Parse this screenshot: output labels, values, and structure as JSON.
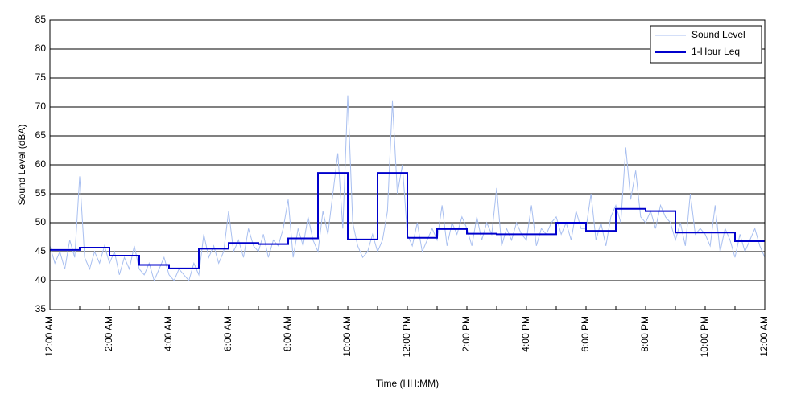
{
  "chart_data": {
    "type": "line",
    "xlabel": "Time (HH:MM)",
    "ylabel": "Sound Level (dBA)",
    "x": [
      0,
      10,
      20,
      30,
      40,
      50,
      60,
      70,
      80,
      90,
      100,
      110,
      120,
      130,
      140,
      150,
      160,
      170,
      180,
      190,
      200,
      210,
      220,
      230,
      240,
      250,
      260,
      270,
      280,
      290,
      300,
      310,
      320,
      330,
      340,
      350,
      360,
      370,
      380,
      390,
      400,
      410,
      420,
      430,
      440,
      450,
      460,
      470,
      480,
      490,
      500,
      510,
      520,
      530,
      540,
      550,
      560,
      570,
      580,
      590,
      600,
      610,
      620,
      630,
      640,
      650,
      660,
      670,
      680,
      690,
      700,
      710,
      720,
      730,
      740,
      750,
      760,
      770,
      780,
      790,
      800,
      810,
      820,
      830,
      840,
      850,
      860,
      870,
      880,
      890,
      900,
      910,
      920,
      930,
      940,
      950,
      960,
      970,
      980,
      990,
      1000,
      1010,
      1020,
      1030,
      1040,
      1050,
      1060,
      1070,
      1080,
      1090,
      1100,
      1110,
      1120,
      1130,
      1140,
      1150,
      1160,
      1170,
      1180,
      1190,
      1200,
      1210,
      1220,
      1230,
      1240,
      1250,
      1260,
      1270,
      1280,
      1290,
      1300,
      1310,
      1320,
      1330,
      1340,
      1350,
      1360,
      1370,
      1380,
      1390,
      1400,
      1410,
      1420,
      1430,
      1440
    ],
    "series": [
      {
        "name": "Sound Level",
        "color": "#a8bff0",
        "style": "line",
        "values": [
          46,
          43,
          45,
          42,
          47,
          44,
          58,
          44,
          42,
          45,
          43,
          46,
          43,
          45,
          41,
          44,
          42,
          46,
          42,
          41,
          43,
          40,
          42,
          44,
          41,
          40,
          42,
          41,
          40,
          43,
          41,
          48,
          44,
          46,
          43,
          45,
          52,
          45,
          47,
          44,
          49,
          46,
          45,
          48,
          44,
          47,
          46,
          49,
          54,
          44,
          49,
          46,
          51,
          47,
          45,
          52,
          48,
          55,
          62,
          49,
          72,
          50,
          46,
          44,
          45,
          48,
          45,
          47,
          52,
          71,
          55,
          60,
          48,
          46,
          50,
          45,
          47,
          49,
          47,
          53,
          46,
          50,
          48,
          51,
          49,
          46,
          51,
          47,
          50,
          48,
          56,
          46,
          49,
          47,
          50,
          48,
          47,
          53,
          46,
          49,
          48,
          50,
          51,
          48,
          50,
          47,
          52,
          49,
          49,
          55,
          47,
          50,
          46,
          51,
          53,
          50,
          63,
          54,
          59,
          51,
          50,
          52,
          49,
          53,
          51,
          50,
          47,
          50,
          46,
          55,
          48,
          49,
          48,
          46,
          53,
          45,
          49,
          47,
          44,
          48,
          45,
          47,
          49,
          46,
          44
        ]
      },
      {
        "name": "1-Hour Leq",
        "color": "#0000cc",
        "style": "step",
        "values": [
          45.3,
          45.3,
          45.3,
          45.3,
          45.3,
          45.3,
          45.7,
          45.7,
          45.7,
          45.7,
          45.7,
          45.7,
          44.3,
          44.3,
          44.3,
          44.3,
          44.3,
          44.3,
          42.7,
          42.7,
          42.7,
          42.7,
          42.7,
          42.7,
          42.1,
          42.1,
          42.1,
          42.1,
          42.1,
          42.1,
          45.5,
          45.5,
          45.5,
          45.5,
          45.5,
          45.5,
          46.5,
          46.5,
          46.5,
          46.5,
          46.5,
          46.5,
          46.3,
          46.3,
          46.3,
          46.3,
          46.3,
          46.3,
          47.3,
          47.3,
          47.3,
          47.3,
          47.3,
          47.3,
          58.6,
          58.6,
          58.6,
          58.6,
          58.6,
          58.6,
          47.1,
          47.1,
          47.1,
          47.1,
          47.1,
          47.1,
          58.6,
          58.6,
          58.6,
          58.6,
          58.6,
          58.6,
          47.4,
          47.4,
          47.4,
          47.4,
          47.4,
          47.4,
          48.9,
          48.9,
          48.9,
          48.9,
          48.9,
          48.9,
          48.1,
          48.1,
          48.1,
          48.1,
          48.1,
          48.1,
          48.0,
          48.0,
          48.0,
          48.0,
          48.0,
          48.0,
          48.0,
          48.0,
          48.0,
          48.0,
          48.0,
          48.0,
          50.0,
          50.0,
          50.0,
          50.0,
          50.0,
          50.0,
          48.6,
          48.6,
          48.6,
          48.6,
          48.6,
          48.6,
          52.4,
          52.4,
          52.4,
          52.4,
          52.4,
          52.4,
          52.0,
          52.0,
          52.0,
          52.0,
          52.0,
          52.0,
          48.3,
          48.3,
          48.3,
          48.3,
          48.3,
          48.3,
          48.3,
          48.3,
          48.3,
          48.3,
          48.3,
          48.3,
          46.8,
          46.8,
          46.8,
          46.8,
          46.8,
          46.8,
          46.8
        ]
      }
    ],
    "xlim": [
      0,
      1440
    ],
    "xticks": [
      {
        "value": 0,
        "label": "12:00 AM"
      },
      {
        "value": 120,
        "label": "2:00 AM"
      },
      {
        "value": 240,
        "label": "4:00 AM"
      },
      {
        "value": 360,
        "label": "6:00 AM"
      },
      {
        "value": 480,
        "label": "8:00 AM"
      },
      {
        "value": 600,
        "label": "10:00 AM"
      },
      {
        "value": 720,
        "label": "12:00 PM"
      },
      {
        "value": 840,
        "label": "2:00 PM"
      },
      {
        "value": 960,
        "label": "4:00 PM"
      },
      {
        "value": 1080,
        "label": "6:00 PM"
      },
      {
        "value": 1200,
        "label": "8:00 PM"
      },
      {
        "value": 1320,
        "label": "10:00 PM"
      },
      {
        "value": 1440,
        "label": "12:00 AM"
      }
    ],
    "xminorticks": [
      60,
      180,
      300,
      420,
      540,
      660,
      780,
      900,
      1020,
      1140,
      1260,
      1380
    ],
    "ylim": [
      35,
      85
    ],
    "yticks": [
      35,
      40,
      45,
      50,
      55,
      60,
      65,
      70,
      75,
      80,
      85
    ],
    "grid": true,
    "legend": "top-right"
  }
}
